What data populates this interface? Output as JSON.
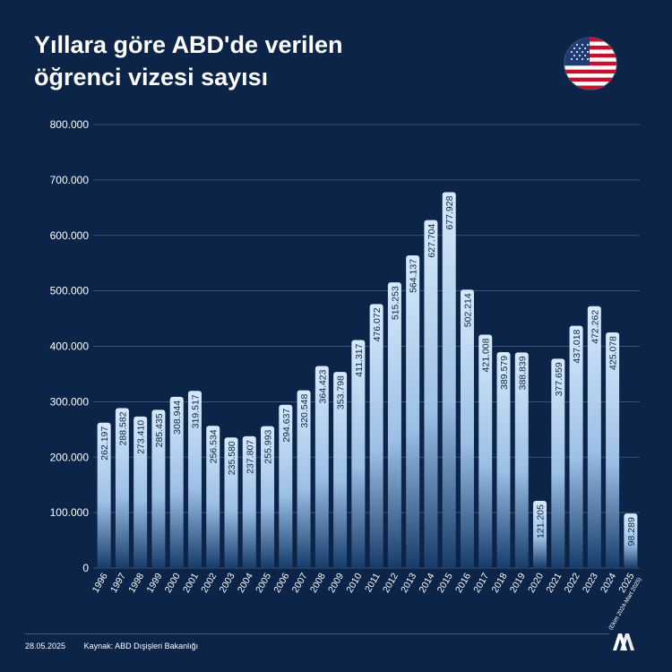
{
  "title_line1": "Yıllara göre ABD'de verilen",
  "title_line2": "öğrenci vizesi sayısı",
  "footer": {
    "date": "28.05.2025",
    "source": "Kaynak: ABD Dışişleri Bakanlığı"
  },
  "colors": {
    "background": "#0b2447",
    "bar_top": "#d7e9fb",
    "bar_bottom": "#163c6b",
    "text": "#ffffff",
    "bar_label": "#0b2447",
    "gridline": "#4a6285"
  },
  "icons": [
    "us-flag-icon",
    "aa-logo-icon"
  ],
  "chart_data": {
    "type": "bar",
    "title": "Yıllara göre ABD'de verilen öğrenci vizesi sayısı",
    "xlabel": "",
    "ylabel": "",
    "ylim": [
      0,
      800000
    ],
    "y_ticks": [
      {
        "value": 0,
        "label": "0"
      },
      {
        "value": 100000,
        "label": "100.000"
      },
      {
        "value": 200000,
        "label": "200.000"
      },
      {
        "value": 300000,
        "label": "300.000"
      },
      {
        "value": 400000,
        "label": "400.000"
      },
      {
        "value": 500000,
        "label": "500.000"
      },
      {
        "value": 600000,
        "label": "600.000"
      },
      {
        "value": 700000,
        "label": "700.000"
      },
      {
        "value": 800000,
        "label": "800.000"
      }
    ],
    "grid": true,
    "categories": [
      "1996",
      "1997",
      "1998",
      "1999",
      "2000",
      "2001",
      "2002",
      "2003",
      "2004",
      "2005",
      "2006",
      "2007",
      "2008",
      "2009",
      "2010",
      "2011",
      "2012",
      "2013",
      "2014",
      "2015",
      "2016",
      "2017",
      "2018",
      "2019",
      "2020",
      "2021",
      "2022",
      "2023",
      "2024",
      "2025"
    ],
    "category_notes": {
      "2025": "(Ekim 2024-Mart 2025)"
    },
    "values": [
      262197,
      288582,
      273410,
      285435,
      308944,
      319517,
      256534,
      235580,
      237807,
      255993,
      294637,
      320548,
      364423,
      353798,
      411317,
      476072,
      515253,
      564137,
      627704,
      677928,
      502214,
      421008,
      389579,
      388839,
      121205,
      377659,
      437018,
      472262,
      425078,
      98289
    ],
    "value_labels": [
      "262.197",
      "288.582",
      "273.410",
      "285.435",
      "308.944",
      "319.517",
      "256.534",
      "235.580",
      "237.807",
      "255.993",
      "294.637",
      "320.548",
      "364.423",
      "353.798",
      "411.317",
      "476.072",
      "515.253",
      "564.137",
      "627.704",
      "677.928",
      "502.214",
      "421.008",
      "389.579",
      "388.839",
      "121.205",
      "377.659",
      "437.018",
      "472.262",
      "425.078",
      "98.289"
    ]
  }
}
